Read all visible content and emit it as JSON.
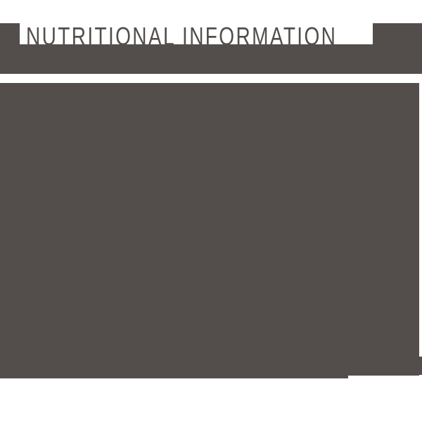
{
  "colors": {
    "ink": "#534e4b",
    "background": "#ffffff"
  },
  "header": {
    "title": "NUTRITIONAL INFORMATION"
  }
}
